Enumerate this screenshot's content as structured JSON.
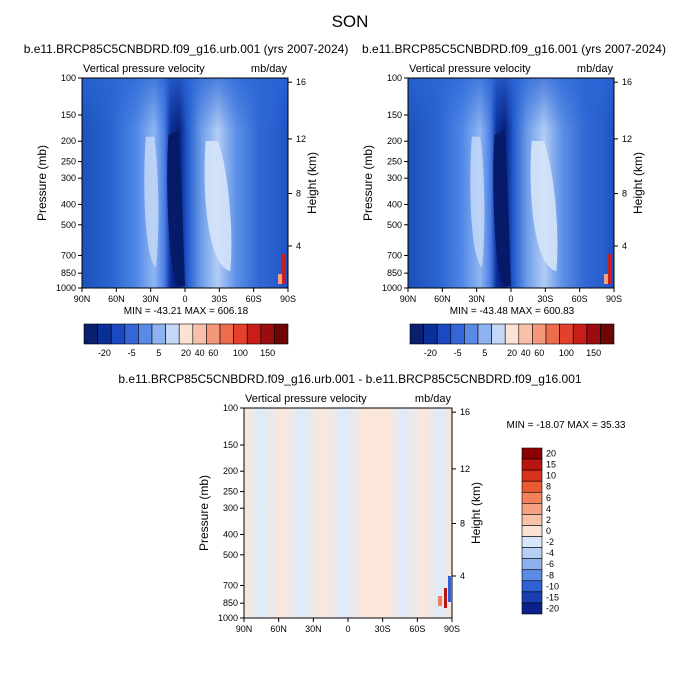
{
  "figure": {
    "title": "SON"
  },
  "chart_data": [
    {
      "type": "heatmap",
      "title": "b.e11.BRCP85C5CNBDRD.f09_g16.urb.001 (yrs 2007-2024)",
      "variable": "Vertical pressure velocity",
      "units": "mb/day",
      "xlabel": "",
      "ylabel": "Pressure (mb)",
      "y2label": "Height (km)",
      "x_ticks": [
        "90N",
        "60N",
        "30N",
        "0",
        "30S",
        "60S",
        "90S"
      ],
      "y_ticks": [
        "100",
        "150",
        "200",
        "250",
        "300",
        "400",
        "500",
        "700",
        "850",
        "1000"
      ],
      "y2_ticks": [
        "16",
        "12",
        "8",
        "4"
      ],
      "stats": "MIN = -43.21  MAX = 606.18",
      "colorbar_labels": [
        "-20",
        "-5",
        "5",
        "20",
        "40",
        "60",
        "100",
        "150"
      ]
    },
    {
      "type": "heatmap",
      "title": "b.e11.BRCP85C5CNBDRD.f09_g16.001 (yrs 2007-2024)",
      "variable": "Vertical pressure velocity",
      "units": "mb/day",
      "xlabel": "",
      "ylabel": "Pressure (mb)",
      "y2label": "Height (km)",
      "x_ticks": [
        "90N",
        "60N",
        "30N",
        "0",
        "30S",
        "60S",
        "90S"
      ],
      "y_ticks": [
        "100",
        "150",
        "200",
        "250",
        "300",
        "400",
        "500",
        "700",
        "850",
        "1000"
      ],
      "y2_ticks": [
        "16",
        "12",
        "8",
        "4"
      ],
      "stats": "MIN = -43.48  MAX = 600.83",
      "colorbar_labels": [
        "-20",
        "-5",
        "5",
        "20",
        "40",
        "60",
        "100",
        "150"
      ]
    },
    {
      "type": "heatmap",
      "title": "b.e11.BRCP85C5CNBDRD.f09_g16.urb.001 - b.e11.BRCP85C5CNBDRD.f09_g16.001",
      "variable": "Vertical pressure velocity",
      "units": "mb/day",
      "xlabel": "",
      "ylabel": "Pressure (mb)",
      "y2label": "Height (km)",
      "x_ticks": [
        "90N",
        "60N",
        "30N",
        "0",
        "30S",
        "60S",
        "90S"
      ],
      "y_ticks": [
        "100",
        "150",
        "200",
        "250",
        "300",
        "400",
        "500",
        "700",
        "850",
        "1000"
      ],
      "y2_ticks": [
        "16",
        "12",
        "8",
        "4"
      ],
      "stats": "MIN = -18.07  MAX = 35.33",
      "colorbar_labels": [
        "20",
        "15",
        "10",
        "8",
        "6",
        "4",
        "2",
        "0",
        "-2",
        "-4",
        "-6",
        "-8",
        "-10",
        "-15",
        "-20"
      ]
    }
  ]
}
